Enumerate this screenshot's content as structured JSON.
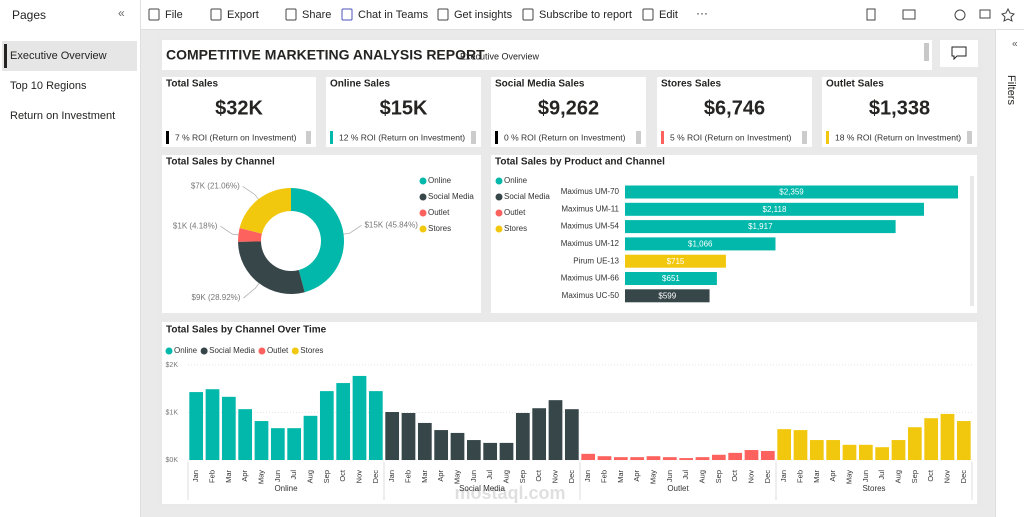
{
  "sidebar": {
    "title": "Pages",
    "pages": [
      "Executive Overview",
      "Top 10 Regions",
      "Return on Investment"
    ]
  },
  "toolbar": {
    "items": [
      "File",
      "Export",
      "Share",
      "Chat in Teams",
      "Get insights",
      "Subscribe to report",
      "Edit"
    ]
  },
  "filters_label": "Filters",
  "report": {
    "title": "COMPETITIVE MARKETING ANALYSIS REPORT",
    "subtitle": "Executive Overview"
  },
  "kpis": [
    {
      "title": "Total Sales",
      "value": "$32K",
      "roi": "7 % ROI (Return on Investment)",
      "color": "#000000"
    },
    {
      "title": "Online Sales",
      "value": "$15K",
      "roi": "12 % ROI (Return on Investment)",
      "color": "#01b8aa"
    },
    {
      "title": "Social Media Sales",
      "value": "$9,262",
      "roi": "0 % ROI (Return on Investment)",
      "color": "#000000"
    },
    {
      "title": "Stores Sales",
      "value": "$6,746",
      "roi": "5 % ROI (Return on Investment)",
      "color": "#fd625e"
    },
    {
      "title": "Outlet Sales",
      "value": "$1,338",
      "roi": "18 % ROI (Return on Investment)",
      "color": "#f2c80f"
    }
  ],
  "chart_data": [
    {
      "type": "pie",
      "title": "Total Sales by Channel",
      "categories": [
        "Online",
        "Social Media",
        "Outlet",
        "Stores"
      ],
      "values": [
        45.84,
        28.92,
        4.18,
        21.06
      ],
      "value_labels": [
        "$15K (45.84%)",
        "$9K (28.92%)",
        "$1K (4.18%)",
        "$7K (21.06%)"
      ],
      "colors": [
        "#01b8aa",
        "#374649",
        "#fd625e",
        "#f2c80f"
      ]
    },
    {
      "type": "hbar",
      "title": "Total Sales by Product and Channel",
      "categories": [
        "Maximus UM-70",
        "Maximus UM-11",
        "Maximus UM-54",
        "Maximus UM-12",
        "Pirum UE-13",
        "Maximus UM-66",
        "Maximus UC-50"
      ],
      "values": [
        2359,
        2118,
        1917,
        1066,
        715,
        651,
        599
      ],
      "value_labels": [
        "$2,359",
        "$2,118",
        "$1,917",
        "$1,066",
        "$715",
        "$651",
        "$599"
      ],
      "colors": [
        "#01b8aa",
        "#01b8aa",
        "#01b8aa",
        "#01b8aa",
        "#f2c80f",
        "#01b8aa",
        "#374649"
      ],
      "legend": [
        {
          "name": "Online",
          "color": "#01b8aa"
        },
        {
          "name": "Social Media",
          "color": "#374649"
        },
        {
          "name": "Outlet",
          "color": "#fd625e"
        },
        {
          "name": "Stores",
          "color": "#f2c80f"
        }
      ]
    },
    {
      "type": "grouped-column",
      "title": "Total Sales by Channel Over Time",
      "categories": [
        "Jan",
        "Feb",
        "Mar",
        "Apr",
        "May",
        "Jun",
        "Jul",
        "Aug",
        "Sep",
        "Oct",
        "Nov",
        "Dec"
      ],
      "series": [
        {
          "name": "Online",
          "color": "#01b8aa",
          "values": [
            1430,
            1490,
            1330,
            1070,
            820,
            670,
            670,
            930,
            1450,
            1620,
            1770,
            1450
          ]
        },
        {
          "name": "Social Media",
          "color": "#374649",
          "values": [
            1010,
            990,
            780,
            630,
            570,
            420,
            360,
            360,
            990,
            1090,
            1260,
            1070
          ]
        },
        {
          "name": "Outlet",
          "color": "#fd625e",
          "values": [
            130,
            80,
            60,
            60,
            80,
            60,
            40,
            60,
            110,
            150,
            210,
            190
          ]
        },
        {
          "name": "Stores",
          "color": "#f2c80f",
          "values": [
            650,
            630,
            420,
            420,
            320,
            320,
            270,
            420,
            690,
            880,
            970,
            820
          ]
        }
      ],
      "ylim": [
        0,
        2000
      ],
      "yticks": [
        {
          "value": 0,
          "label": "$0K"
        },
        {
          "value": 1000,
          "label": "$1K"
        },
        {
          "value": 2000,
          "label": "$2K"
        }
      ],
      "grid": true
    }
  ],
  "watermark": "mostaql.com"
}
